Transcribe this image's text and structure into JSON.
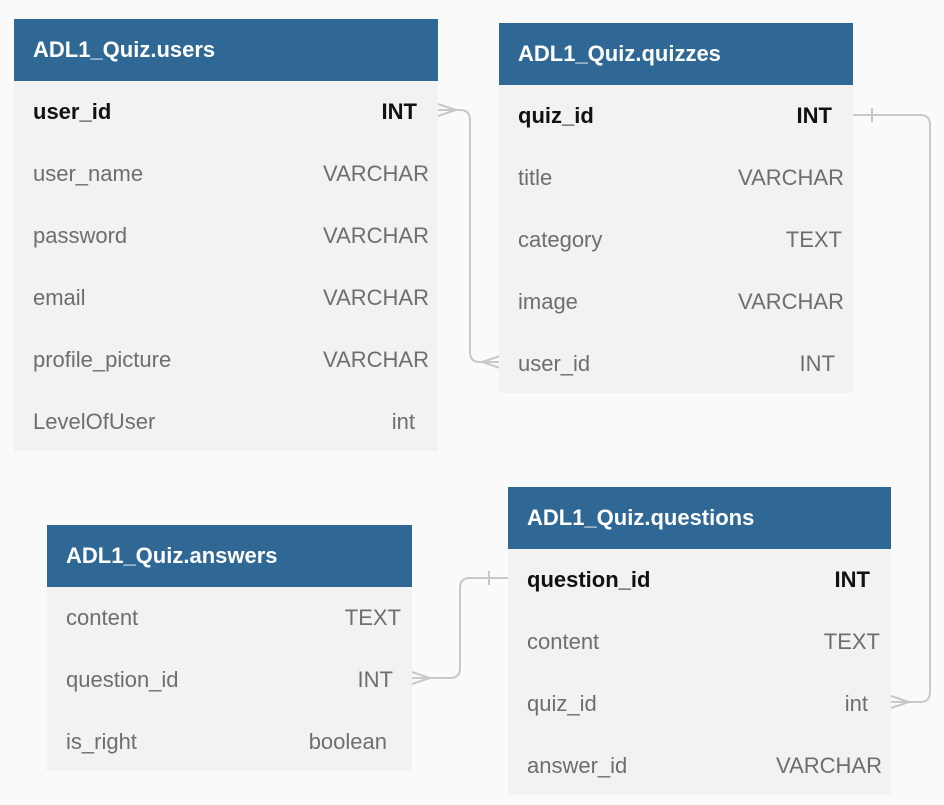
{
  "tables": {
    "users": {
      "name": "ADL1_Quiz.users",
      "columns": [
        {
          "name": "user_id",
          "type": "INT"
        },
        {
          "name": "user_name",
          "type": "VARCHAR"
        },
        {
          "name": "password",
          "type": "VARCHAR"
        },
        {
          "name": "email",
          "type": "VARCHAR"
        },
        {
          "name": "profile_picture",
          "type": "VARCHAR"
        },
        {
          "name": "LevelOfUser",
          "type": "int"
        }
      ]
    },
    "quizzes": {
      "name": "ADL1_Quiz.quizzes",
      "columns": [
        {
          "name": "quiz_id",
          "type": "INT"
        },
        {
          "name": "title",
          "type": "VARCHAR"
        },
        {
          "name": "category",
          "type": "TEXT"
        },
        {
          "name": "image",
          "type": "VARCHAR"
        },
        {
          "name": "user_id",
          "type": "INT"
        }
      ]
    },
    "answers": {
      "name": "ADL1_Quiz.answers",
      "columns": [
        {
          "name": "content",
          "type": "TEXT"
        },
        {
          "name": "question_id",
          "type": "INT"
        },
        {
          "name": "is_right",
          "type": "boolean"
        }
      ]
    },
    "questions": {
      "name": "ADL1_Quiz.questions",
      "columns": [
        {
          "name": "question_id",
          "type": "INT"
        },
        {
          "name": "content",
          "type": "TEXT"
        },
        {
          "name": "quiz_id",
          "type": "int"
        },
        {
          "name": "answer_id",
          "type": "VARCHAR"
        }
      ]
    }
  },
  "colors": {
    "header": "#306895",
    "table_body": "#f2f2f2",
    "connector": "#c8c8c8"
  }
}
